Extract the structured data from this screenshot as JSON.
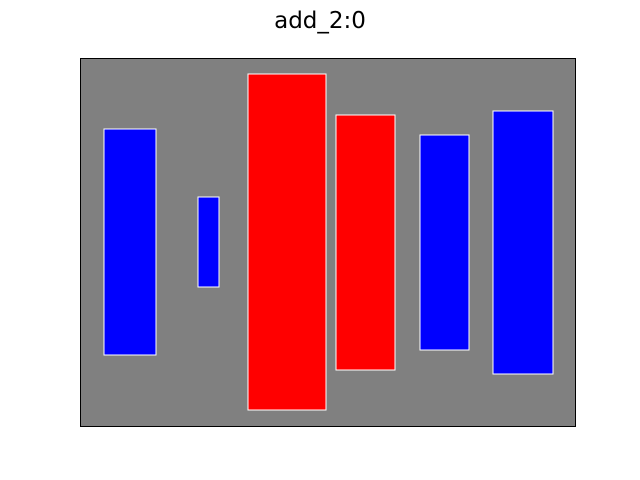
{
  "title": "add_2:0",
  "colors": {
    "background": "#808080",
    "positive": "#0000ff",
    "negative": "#ff0000",
    "outline": "#ffffff",
    "frame": "#000000"
  },
  "blocks": [
    {
      "color": "positive"
    },
    {
      "color": "positive"
    },
    {
      "color": "negative"
    },
    {
      "color": "negative"
    },
    {
      "color": "positive"
    },
    {
      "color": "positive"
    }
  ]
}
